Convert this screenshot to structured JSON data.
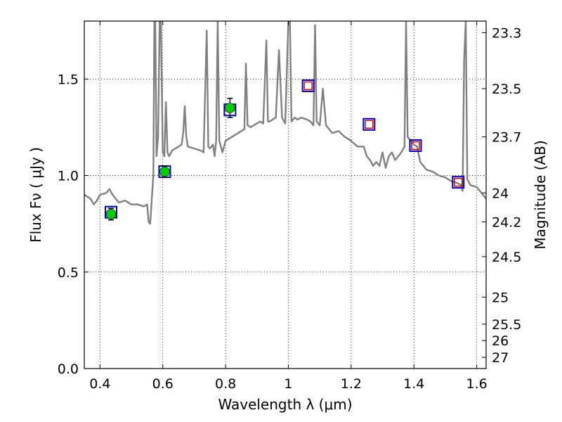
{
  "chart_data": {
    "type": "scatter",
    "xlabel": "Wavelength  λ (μm)",
    "ylabel": "Flux  Fν  ( μJy )",
    "y2label": "Magnitude (AB)",
    "xlim": [
      0.35,
      1.63
    ],
    "ylim": [
      0.0,
      1.8
    ],
    "grid": true,
    "x_ticks": [
      0.4,
      0.6,
      0.8,
      1.0,
      1.2,
      1.4,
      1.6
    ],
    "x_tick_labels": [
      "0.4",
      "0.6",
      "0.8",
      "1",
      "1.2",
      "1.4",
      "1.6"
    ],
    "y_ticks": [
      0.0,
      0.5,
      1.0,
      1.5
    ],
    "y_tick_labels": [
      "0.0",
      "0.5",
      "1.0",
      "1.5"
    ],
    "right_axis_ticks": [
      {
        "label": "23.3",
        "flux": 1.74
      },
      {
        "label": "23.5",
        "flux": 1.45
      },
      {
        "label": "23.7",
        "flux": 1.2
      },
      {
        "label": "24",
        "flux": 0.91
      },
      {
        "label": "24.2",
        "flux": 0.76
      },
      {
        "label": "24.5",
        "flux": 0.58
      },
      {
        "label": "25",
        "flux": 0.37
      },
      {
        "label": "25.5",
        "flux": 0.23
      },
      {
        "label": "26",
        "flux": 0.145
      },
      {
        "label": "27",
        "flux": 0.058
      }
    ],
    "series": [
      {
        "kind": "line",
        "color": "#808080",
        "points": [
          [
            0.35,
            0.9
          ],
          [
            0.37,
            0.88
          ],
          [
            0.38,
            0.85
          ],
          [
            0.39,
            0.87
          ],
          [
            0.4,
            0.9
          ],
          [
            0.42,
            0.91
          ],
          [
            0.43,
            0.93
          ],
          [
            0.44,
            0.9
          ],
          [
            0.46,
            0.86
          ],
          [
            0.48,
            0.87
          ],
          [
            0.5,
            0.85
          ],
          [
            0.52,
            0.85
          ],
          [
            0.54,
            0.84
          ],
          [
            0.55,
            0.85
          ],
          [
            0.555,
            0.76
          ],
          [
            0.56,
            0.75
          ],
          [
            0.565,
            0.88
          ],
          [
            0.57,
            1.0
          ],
          [
            0.573,
            1.8
          ],
          [
            0.576,
            1.8
          ],
          [
            0.58,
            1.1
          ],
          [
            0.585,
            1.2
          ],
          [
            0.59,
            1.8
          ],
          [
            0.594,
            1.8
          ],
          [
            0.6,
            1.12
          ],
          [
            0.605,
            1.1
          ],
          [
            0.61,
            1.38
          ],
          [
            0.615,
            1.12
          ],
          [
            0.62,
            1.1
          ],
          [
            0.63,
            1.13
          ],
          [
            0.64,
            1.14
          ],
          [
            0.65,
            1.15
          ],
          [
            0.66,
            1.16
          ],
          [
            0.665,
            1.22
          ],
          [
            0.67,
            1.36
          ],
          [
            0.675,
            1.2
          ],
          [
            0.68,
            1.15
          ],
          [
            0.7,
            1.14
          ],
          [
            0.72,
            1.13
          ],
          [
            0.73,
            1.12
          ],
          [
            0.74,
            1.75
          ],
          [
            0.745,
            1.15
          ],
          [
            0.75,
            1.14
          ],
          [
            0.76,
            1.16
          ],
          [
            0.765,
            1.1
          ],
          [
            0.77,
            1.18
          ],
          [
            0.775,
            1.8
          ],
          [
            0.78,
            1.18
          ],
          [
            0.79,
            1.12
          ],
          [
            0.8,
            1.18
          ],
          [
            0.82,
            1.2
          ],
          [
            0.84,
            1.22
          ],
          [
            0.85,
            1.23
          ],
          [
            0.86,
            1.24
          ],
          [
            0.865,
            1.58
          ],
          [
            0.87,
            1.26
          ],
          [
            0.88,
            1.25
          ],
          [
            0.9,
            1.27
          ],
          [
            0.91,
            1.28
          ],
          [
            0.92,
            1.27
          ],
          [
            0.93,
            1.7
          ],
          [
            0.935,
            1.28
          ],
          [
            0.94,
            1.28
          ],
          [
            0.96,
            1.3
          ],
          [
            0.97,
            1.65
          ],
          [
            0.98,
            1.3
          ],
          [
            0.99,
            1.27
          ],
          [
            1.0,
            1.8
          ],
          [
            1.005,
            1.8
          ],
          [
            1.01,
            1.28
          ],
          [
            1.02,
            1.3
          ],
          [
            1.03,
            1.29
          ],
          [
            1.04,
            1.3
          ],
          [
            1.06,
            1.29
          ],
          [
            1.07,
            1.28
          ],
          [
            1.08,
            1.26
          ],
          [
            1.085,
            1.78
          ],
          [
            1.09,
            1.28
          ],
          [
            1.1,
            1.26
          ],
          [
            1.11,
            1.45
          ],
          [
            1.12,
            1.26
          ],
          [
            1.14,
            1.22
          ],
          [
            1.16,
            1.23
          ],
          [
            1.18,
            1.2
          ],
          [
            1.2,
            1.18
          ],
          [
            1.22,
            1.15
          ],
          [
            1.24,
            1.15
          ],
          [
            1.25,
            1.1
          ],
          [
            1.26,
            1.08
          ],
          [
            1.27,
            1.05
          ],
          [
            1.28,
            1.07
          ],
          [
            1.29,
            1.05
          ],
          [
            1.3,
            1.12
          ],
          [
            1.31,
            1.04
          ],
          [
            1.32,
            1.1
          ],
          [
            1.33,
            1.12
          ],
          [
            1.34,
            1.08
          ],
          [
            1.35,
            1.1
          ],
          [
            1.36,
            1.12
          ],
          [
            1.37,
            1.15
          ],
          [
            1.375,
            1.8
          ],
          [
            1.38,
            1.2
          ],
          [
            1.39,
            1.18
          ],
          [
            1.4,
            1.16
          ],
          [
            1.41,
            1.15
          ],
          [
            1.42,
            1.07
          ],
          [
            1.43,
            1.05
          ],
          [
            1.44,
            1.03
          ],
          [
            1.46,
            1.02
          ],
          [
            1.48,
            1.0
          ],
          [
            1.5,
            0.99
          ],
          [
            1.52,
            0.97
          ],
          [
            1.54,
            0.96
          ],
          [
            1.55,
            0.95
          ],
          [
            1.555,
            0.92
          ],
          [
            1.56,
            1.6
          ],
          [
            1.565,
            1.8
          ],
          [
            1.57,
            0.98
          ],
          [
            1.58,
            0.95
          ],
          [
            1.6,
            0.94
          ],
          [
            1.62,
            0.9
          ],
          [
            1.63,
            0.88
          ]
        ]
      },
      {
        "kind": "observed",
        "marker": "filled-circle",
        "color": "#00cc00",
        "points": [
          {
            "x": 0.435,
            "y": 0.8,
            "yerr": 0.03
          },
          {
            "x": 0.606,
            "y": 1.02,
            "yerr": 0.03
          },
          {
            "x": 0.814,
            "y": 1.35,
            "yerr": 0.05
          }
        ]
      },
      {
        "kind": "predicted",
        "marker": "open-square",
        "color": "#cc0000",
        "points": [
          {
            "x": 1.063,
            "y": 1.465
          },
          {
            "x": 1.257,
            "y": 1.265
          },
          {
            "x": 1.405,
            "y": 1.155
          },
          {
            "x": 1.541,
            "y": 0.965
          }
        ]
      },
      {
        "kind": "model-bandpass",
        "marker": "open-square",
        "color": "#0000cc",
        "points": [
          {
            "x": 0.435,
            "y": 0.81
          },
          {
            "x": 0.606,
            "y": 1.02
          },
          {
            "x": 0.814,
            "y": 1.34
          },
          {
            "x": 1.063,
            "y": 1.465
          },
          {
            "x": 1.257,
            "y": 1.265
          },
          {
            "x": 1.405,
            "y": 1.155
          },
          {
            "x": 1.541,
            "y": 0.965
          }
        ]
      }
    ]
  }
}
